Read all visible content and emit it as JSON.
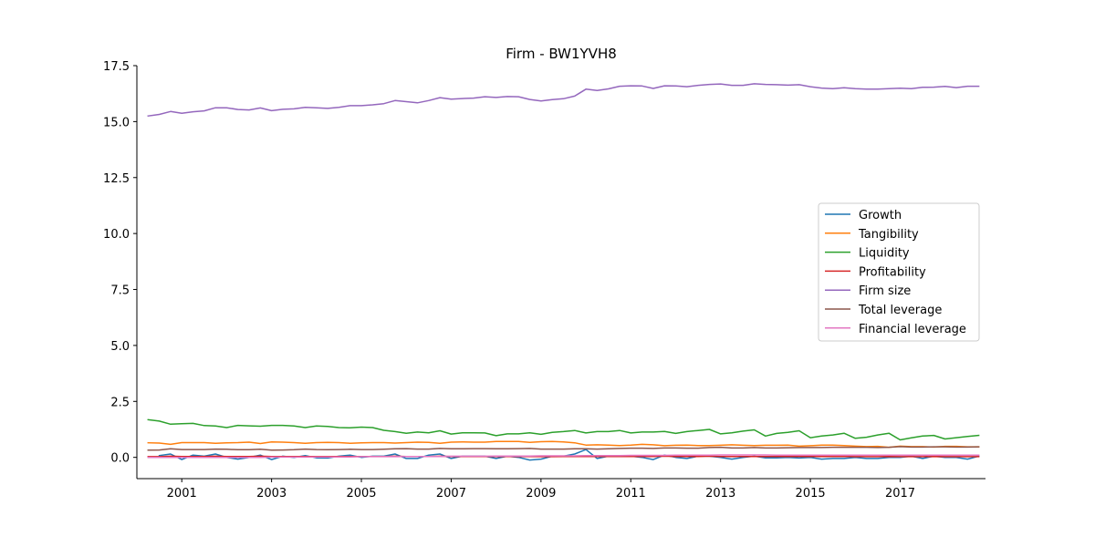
{
  "chart_data": {
    "type": "line",
    "title": "Firm - BW1YVH8",
    "xlabel": "",
    "ylabel": "",
    "xlim": [
      2000.0,
      2018.9
    ],
    "ylim": [
      -0.95,
      17.5
    ],
    "x_ticks": [
      2001,
      2003,
      2005,
      2007,
      2009,
      2011,
      2013,
      2015,
      2017
    ],
    "y_ticks": [
      0.0,
      2.5,
      5.0,
      7.5,
      10.0,
      12.5,
      15.0,
      17.5
    ],
    "y_tick_labels": [
      "0.0",
      "2.5",
      "5.0",
      "7.5",
      "10.0",
      "12.5",
      "15.0",
      "17.5"
    ],
    "grid": false,
    "legend_position": "center-right",
    "x": [
      2000.25,
      2000.5,
      2000.75,
      2001.0,
      2001.25,
      2001.5,
      2001.75,
      2002.0,
      2002.25,
      2002.5,
      2002.75,
      2003.0,
      2003.25,
      2003.5,
      2003.75,
      2004.0,
      2004.25,
      2004.5,
      2004.75,
      2005.0,
      2005.25,
      2005.5,
      2005.75,
      2006.0,
      2006.25,
      2006.5,
      2006.75,
      2007.0,
      2007.25,
      2007.5,
      2007.75,
      2008.0,
      2008.25,
      2008.5,
      2008.75,
      2009.0,
      2009.25,
      2009.5,
      2009.75,
      2010.0,
      2010.25,
      2010.5,
      2010.75,
      2011.0,
      2011.25,
      2011.5,
      2011.75,
      2012.0,
      2012.25,
      2012.5,
      2012.75,
      2013.0,
      2013.25,
      2013.5,
      2013.75,
      2014.0,
      2014.25,
      2014.5,
      2014.75,
      2015.0,
      2015.25,
      2015.5,
      2015.75,
      2016.0,
      2016.25,
      2016.5,
      2016.75,
      2017.0,
      2017.25,
      2017.5,
      2017.75,
      2018.0,
      2018.25,
      2018.5,
      2018.75
    ],
    "series": [
      {
        "name": "Growth",
        "color": "#1f77b4",
        "values": [
          null,
          0.08,
          0.15,
          -0.1,
          0.1,
          0.05,
          0.15,
          0.0,
          -0.08,
          0.0,
          0.1,
          -0.1,
          0.05,
          0.0,
          0.08,
          -0.02,
          -0.03,
          0.05,
          0.1,
          0.0,
          0.05,
          0.05,
          0.15,
          -0.05,
          -0.05,
          0.1,
          0.15,
          -0.05,
          0.05,
          0.05,
          0.05,
          -0.05,
          0.05,
          0.0,
          -0.12,
          -0.08,
          0.05,
          0.05,
          0.15,
          0.35,
          -0.05,
          0.05,
          0.05,
          0.05,
          0.0,
          -0.1,
          0.1,
          0.0,
          -0.05,
          0.05,
          0.05,
          0.0,
          -0.08,
          0.0,
          0.05,
          -0.02,
          -0.02,
          0.0,
          -0.03,
          0.0,
          -0.08,
          -0.05,
          -0.05,
          0.0,
          -0.05,
          -0.05,
          0.0,
          0.0,
          0.05,
          -0.05,
          0.05,
          0.0,
          0.0,
          -0.08,
          0.05
        ]
      },
      {
        "name": "Tangibility",
        "color": "#ff7f0e",
        "values": [
          0.65,
          0.64,
          0.58,
          0.66,
          0.66,
          0.66,
          0.63,
          0.65,
          0.66,
          0.68,
          0.62,
          0.69,
          0.68,
          0.66,
          0.63,
          0.66,
          0.67,
          0.66,
          0.63,
          0.65,
          0.66,
          0.66,
          0.64,
          0.66,
          0.68,
          0.67,
          0.63,
          0.68,
          0.69,
          0.68,
          0.68,
          0.71,
          0.71,
          0.71,
          0.67,
          0.7,
          0.71,
          0.69,
          0.65,
          0.55,
          0.56,
          0.55,
          0.53,
          0.55,
          0.58,
          0.56,
          0.52,
          0.54,
          0.55,
          0.53,
          0.53,
          0.54,
          0.56,
          0.54,
          0.53,
          0.54,
          0.54,
          0.55,
          0.5,
          0.52,
          0.55,
          0.55,
          0.53,
          0.5,
          0.48,
          0.49,
          0.45,
          0.5,
          0.48,
          0.48,
          0.46,
          0.49,
          0.49,
          0.47,
          0.47
        ]
      },
      {
        "name": "Liquidity",
        "color": "#2ca02c",
        "values": [
          1.68,
          1.62,
          1.48,
          1.5,
          1.52,
          1.42,
          1.4,
          1.33,
          1.43,
          1.41,
          1.39,
          1.43,
          1.43,
          1.4,
          1.33,
          1.4,
          1.38,
          1.33,
          1.32,
          1.35,
          1.33,
          1.21,
          1.15,
          1.08,
          1.13,
          1.1,
          1.19,
          1.04,
          1.1,
          1.1,
          1.09,
          0.97,
          1.05,
          1.05,
          1.1,
          1.03,
          1.12,
          1.15,
          1.2,
          1.09,
          1.15,
          1.15,
          1.2,
          1.09,
          1.13,
          1.13,
          1.16,
          1.07,
          1.15,
          1.2,
          1.25,
          1.05,
          1.1,
          1.17,
          1.23,
          0.95,
          1.07,
          1.12,
          1.19,
          0.88,
          0.95,
          1.0,
          1.08,
          0.85,
          0.9,
          1.0,
          1.08,
          0.78,
          0.87,
          0.95,
          0.98,
          0.82,
          0.88,
          0.93,
          0.98
        ]
      },
      {
        "name": "Profitability",
        "color": "#d62728",
        "values": [
          0.03,
          0.03,
          0.05,
          0.04,
          0.04,
          0.04,
          0.05,
          0.04,
          0.04,
          0.04,
          0.05,
          0.04,
          0.04,
          0.04,
          0.04,
          0.04,
          0.04,
          0.04,
          0.04,
          0.04,
          0.04,
          0.04,
          0.05,
          0.04,
          0.04,
          0.04,
          0.05,
          0.04,
          0.04,
          0.04,
          0.04,
          0.04,
          0.04,
          0.04,
          0.04,
          0.03,
          0.03,
          0.04,
          0.04,
          0.04,
          0.04,
          0.04,
          0.04,
          0.04,
          0.04,
          0.04,
          0.05,
          0.04,
          0.04,
          0.04,
          0.05,
          0.04,
          0.04,
          0.04,
          0.04,
          0.04,
          0.04,
          0.04,
          0.04,
          0.04,
          0.04,
          0.04,
          0.04,
          0.03,
          0.03,
          0.03,
          0.04,
          0.03,
          0.03,
          0.03,
          0.04,
          0.03,
          0.03,
          0.03,
          0.03
        ]
      },
      {
        "name": "Firm size",
        "color": "#9467bd",
        "values": [
          15.25,
          15.32,
          15.45,
          15.37,
          15.44,
          15.48,
          15.62,
          15.62,
          15.54,
          15.52,
          15.61,
          15.49,
          15.55,
          15.57,
          15.64,
          15.62,
          15.59,
          15.64,
          15.71,
          15.71,
          15.75,
          15.8,
          15.94,
          15.89,
          15.84,
          15.94,
          16.07,
          16.0,
          16.03,
          16.05,
          16.11,
          16.08,
          16.12,
          16.11,
          15.99,
          15.92,
          15.98,
          16.02,
          16.14,
          16.45,
          16.39,
          16.46,
          16.58,
          16.6,
          16.59,
          16.48,
          16.6,
          16.59,
          16.56,
          16.62,
          16.66,
          16.68,
          16.62,
          16.62,
          16.69,
          16.66,
          16.65,
          16.63,
          16.65,
          16.56,
          16.5,
          16.47,
          16.51,
          16.47,
          16.45,
          16.45,
          16.47,
          16.49,
          16.47,
          16.53,
          16.54,
          16.57,
          16.52,
          16.58,
          16.58
        ]
      },
      {
        "name": "Total leverage",
        "color": "#8c564b",
        "values": [
          0.32,
          0.33,
          0.38,
          0.35,
          0.35,
          0.35,
          0.37,
          0.36,
          0.34,
          0.34,
          0.36,
          0.32,
          0.33,
          0.34,
          0.37,
          0.35,
          0.34,
          0.35,
          0.36,
          0.35,
          0.35,
          0.36,
          0.38,
          0.39,
          0.37,
          0.37,
          0.4,
          0.38,
          0.38,
          0.39,
          0.39,
          0.38,
          0.38,
          0.39,
          0.4,
          0.37,
          0.37,
          0.37,
          0.38,
          0.38,
          0.37,
          0.38,
          0.4,
          0.41,
          0.41,
          0.4,
          0.42,
          0.42,
          0.41,
          0.41,
          0.44,
          0.45,
          0.42,
          0.42,
          0.44,
          0.42,
          0.42,
          0.43,
          0.44,
          0.44,
          0.44,
          0.45,
          0.45,
          0.45,
          0.45,
          0.44,
          0.45,
          0.48,
          0.46,
          0.46,
          0.47,
          0.47,
          0.46,
          0.46,
          0.47
        ]
      },
      {
        "name": "Financial leverage",
        "color": "#e377c2",
        "values": [
          0.0,
          0.0,
          0.0,
          0.0,
          0.0,
          0.0,
          0.0,
          0.0,
          0.0,
          0.0,
          0.0,
          0.01,
          0.01,
          0.01,
          0.01,
          0.02,
          0.02,
          0.02,
          0.02,
          0.03,
          0.03,
          0.03,
          0.03,
          0.04,
          0.04,
          0.04,
          0.04,
          0.05,
          0.05,
          0.05,
          0.05,
          0.06,
          0.06,
          0.06,
          0.06,
          0.07,
          0.07,
          0.07,
          0.07,
          0.08,
          0.08,
          0.08,
          0.08,
          0.09,
          0.09,
          0.09,
          0.09,
          0.1,
          0.1,
          0.1,
          0.1,
          0.11,
          0.11,
          0.11,
          0.11,
          0.11,
          0.1,
          0.1,
          0.1,
          0.1,
          0.1,
          0.1,
          0.1,
          0.1,
          0.1,
          0.1,
          0.1,
          0.1,
          0.1,
          0.1,
          0.1,
          0.1,
          0.1,
          0.1,
          0.1
        ]
      }
    ]
  }
}
